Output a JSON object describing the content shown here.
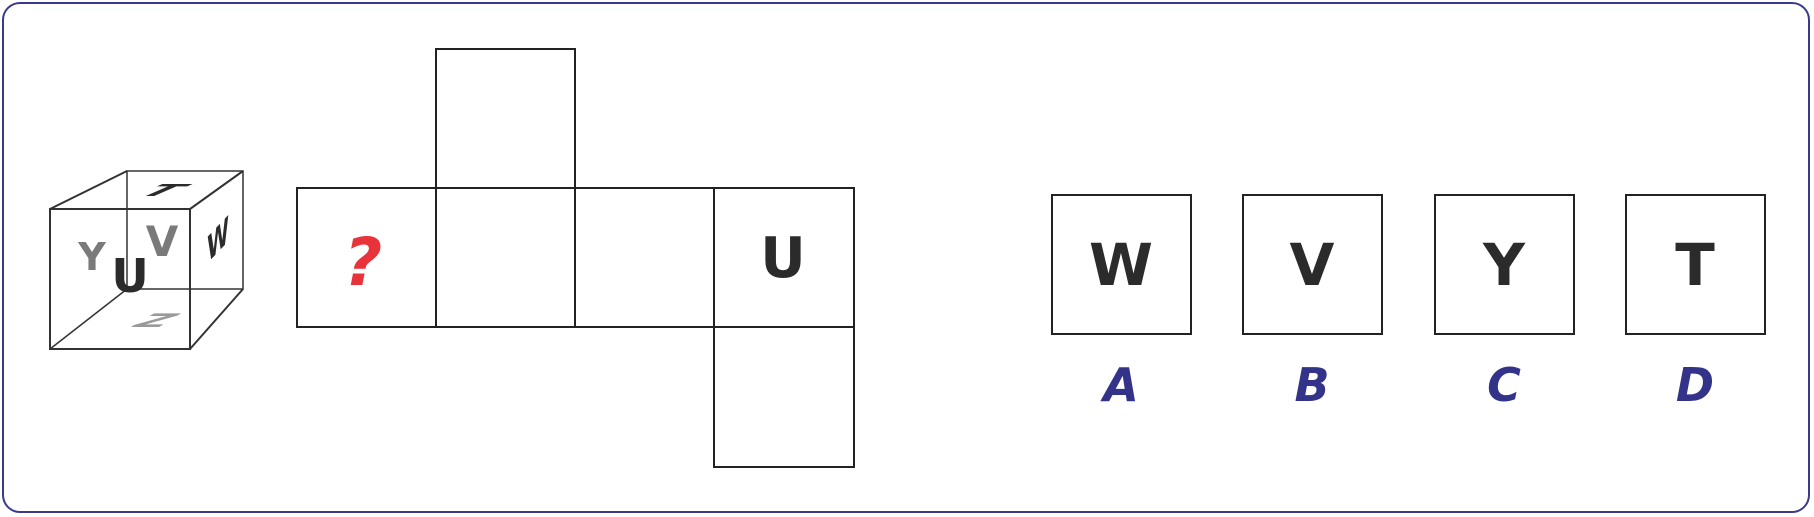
{
  "puzzle": {
    "cube": {
      "faces": {
        "top": "T",
        "front_small_left": "Y",
        "front_small_right": "V",
        "front_center": "U",
        "right_side": "W",
        "bottom": "Z"
      }
    },
    "net": {
      "unknown_face": "?",
      "known_face": "U"
    },
    "options": [
      {
        "letter": "W",
        "label": "A"
      },
      {
        "letter": "V",
        "label": "B"
      },
      {
        "letter": "Y",
        "label": "C"
      },
      {
        "letter": "T",
        "label": "D"
      }
    ],
    "colors": {
      "border": "#3a3a8c",
      "option_label": "#33338a",
      "question_mark": "#e8333a",
      "dark_letter": "#2b2b2b",
      "grey_letter": "#7a7a7a"
    }
  }
}
